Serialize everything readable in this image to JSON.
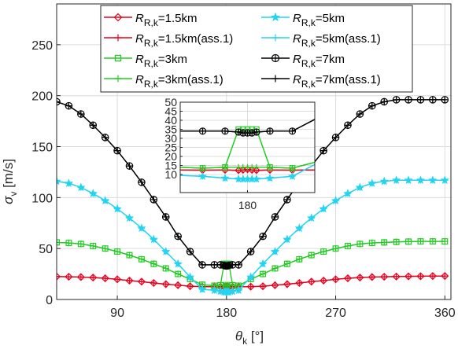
{
  "chart_data": [
    {
      "type": "line",
      "xlabel": "θ",
      "xlabel_sub": "k",
      "xlabel_unit": " [°]",
      "ylabel": "σ",
      "ylabel_sub": "v",
      "ylabel_unit": " [m/s]",
      "xlim": [
        40,
        365
      ],
      "ylim": [
        0,
        290
      ],
      "xticks": [
        90,
        180,
        270,
        360
      ],
      "yticks": [
        0,
        50,
        100,
        150,
        200,
        250
      ],
      "grid": true,
      "legend_placement": "top-center",
      "x": [
        40,
        50,
        60,
        70,
        80,
        90,
        100,
        110,
        120,
        130,
        140,
        150,
        160,
        170,
        175,
        178,
        179,
        180,
        181,
        182,
        185,
        190,
        200,
        210,
        220,
        230,
        240,
        250,
        260,
        270,
        280,
        290,
        300,
        310,
        320,
        330,
        340,
        350,
        360
      ],
      "series": [
        {
          "name_main": "R",
          "name_sub": "R,k",
          "name_tail": "=1.5km",
          "color": "#e8001c",
          "marker": "diamond",
          "values": [
            22.5,
            22.3,
            22,
            21.5,
            20.8,
            19.8,
            18.5,
            17.5,
            16.2,
            15,
            14,
            13,
            12.6,
            12.4,
            12.5,
            12.3,
            12.5,
            12.8,
            12.5,
            12.3,
            12.5,
            12.4,
            12.6,
            13,
            14,
            15,
            16.2,
            17.5,
            18.5,
            19.8,
            20.8,
            21.5,
            22,
            22.3,
            22.5,
            22.7,
            22.8,
            23,
            23
          ]
        },
        {
          "name_main": "R",
          "name_sub": "R,k",
          "name_tail": "=1.5km(ass.1)",
          "color": "#e8001c",
          "marker": "plus",
          "values": [
            22.5,
            22.3,
            22,
            21.5,
            20.8,
            19.8,
            18.5,
            17.5,
            16.2,
            15,
            14,
            13,
            12.6,
            12.4,
            12.5,
            12.3,
            12.5,
            12.5,
            12.5,
            12.3,
            12.5,
            12.4,
            12.6,
            13,
            14,
            15,
            16.2,
            17.5,
            18.5,
            19.8,
            20.8,
            21.5,
            22,
            22.3,
            22.5,
            22.7,
            22.8,
            23,
            23
          ]
        },
        {
          "name_main": "R",
          "name_sub": "R,k",
          "name_tail": "=3km",
          "color": "#22cc22",
          "marker": "square",
          "values": [
            56,
            55.5,
            54.5,
            52.5,
            50,
            47,
            43.5,
            39.5,
            35,
            30.5,
            25,
            20,
            14.5,
            13.5,
            14,
            35,
            35,
            35,
            35,
            35,
            14,
            13.5,
            20,
            25,
            30.5,
            35,
            39.5,
            43.5,
            47,
            50,
            52.5,
            54.5,
            55.5,
            56,
            56.5,
            56.8,
            57,
            57,
            57
          ]
        },
        {
          "name_main": "R",
          "name_sub": "R,k",
          "name_tail": "=3km(ass.1)",
          "color": "#22cc22",
          "marker": "plus",
          "values": [
            56,
            55.5,
            54.5,
            52.5,
            50,
            47,
            43.5,
            39.5,
            35,
            30.5,
            25,
            20,
            14.5,
            13.5,
            14,
            14,
            14,
            14,
            14,
            14,
            14,
            13.5,
            20,
            25,
            30.5,
            35,
            39.5,
            43.5,
            47,
            50,
            52.5,
            54.5,
            55.5,
            56,
            56.5,
            56.8,
            57,
            57,
            57
          ]
        },
        {
          "name_main": "R",
          "name_sub": "R,k",
          "name_tail": "=5km",
          "color": "#22d4f2",
          "marker": "star",
          "values": [
            116,
            114,
            110,
            104,
            97,
            89,
            80,
            70,
            59,
            47,
            35,
            22,
            10,
            9,
            8,
            7.5,
            7.5,
            7.5,
            7.5,
            7.5,
            8,
            9,
            22,
            35,
            47,
            59,
            70,
            80,
            89,
            97,
            104,
            110,
            114,
            116,
            117,
            117,
            117,
            117,
            117
          ]
        },
        {
          "name_main": "R",
          "name_sub": "R,k",
          "name_tail": "=5km(ass.1)",
          "color": "#22d4f2",
          "marker": "plus",
          "values": [
            116,
            114,
            110,
            104,
            97,
            89,
            80,
            70,
            59,
            47,
            35,
            22,
            10,
            9,
            8,
            7.5,
            7.5,
            7.5,
            7.5,
            7.5,
            8,
            9,
            22,
            35,
            47,
            59,
            70,
            80,
            89,
            97,
            104,
            110,
            114,
            116,
            117,
            117,
            117,
            117,
            117
          ]
        },
        {
          "name_main": "R",
          "name_sub": "R,k",
          "name_tail": "=7km",
          "color": "#000000",
          "marker": "circle",
          "values": [
            194,
            190,
            182,
            171,
            159,
            146,
            131,
            115,
            98,
            81,
            62,
            47,
            34,
            34,
            34,
            33.5,
            33,
            33,
            33,
            33.5,
            34,
            34,
            47,
            62,
            81,
            98,
            115,
            131,
            146,
            159,
            171,
            182,
            190,
            194,
            196,
            196,
            196,
            196,
            196
          ]
        },
        {
          "name_main": "R",
          "name_sub": "R,k",
          "name_tail": "=7km(ass.1)",
          "color": "#000000",
          "marker": "plus",
          "values": [
            194,
            190,
            182,
            171,
            159,
            146,
            131,
            115,
            98,
            81,
            62,
            47,
            34,
            34,
            34,
            33.5,
            33,
            33,
            33,
            33.5,
            34,
            34,
            47,
            62,
            81,
            98,
            115,
            131,
            146,
            159,
            171,
            182,
            190,
            194,
            196,
            196,
            196,
            196,
            196
          ]
        }
      ]
    },
    {
      "type": "line",
      "role": "inset",
      "xlim": [
        165,
        195
      ],
      "ylim": [
        0,
        50
      ],
      "xticks": [
        180
      ],
      "yticks": [
        10,
        15,
        20,
        25,
        30,
        35,
        40,
        45,
        50
      ],
      "grid": true
    }
  ]
}
